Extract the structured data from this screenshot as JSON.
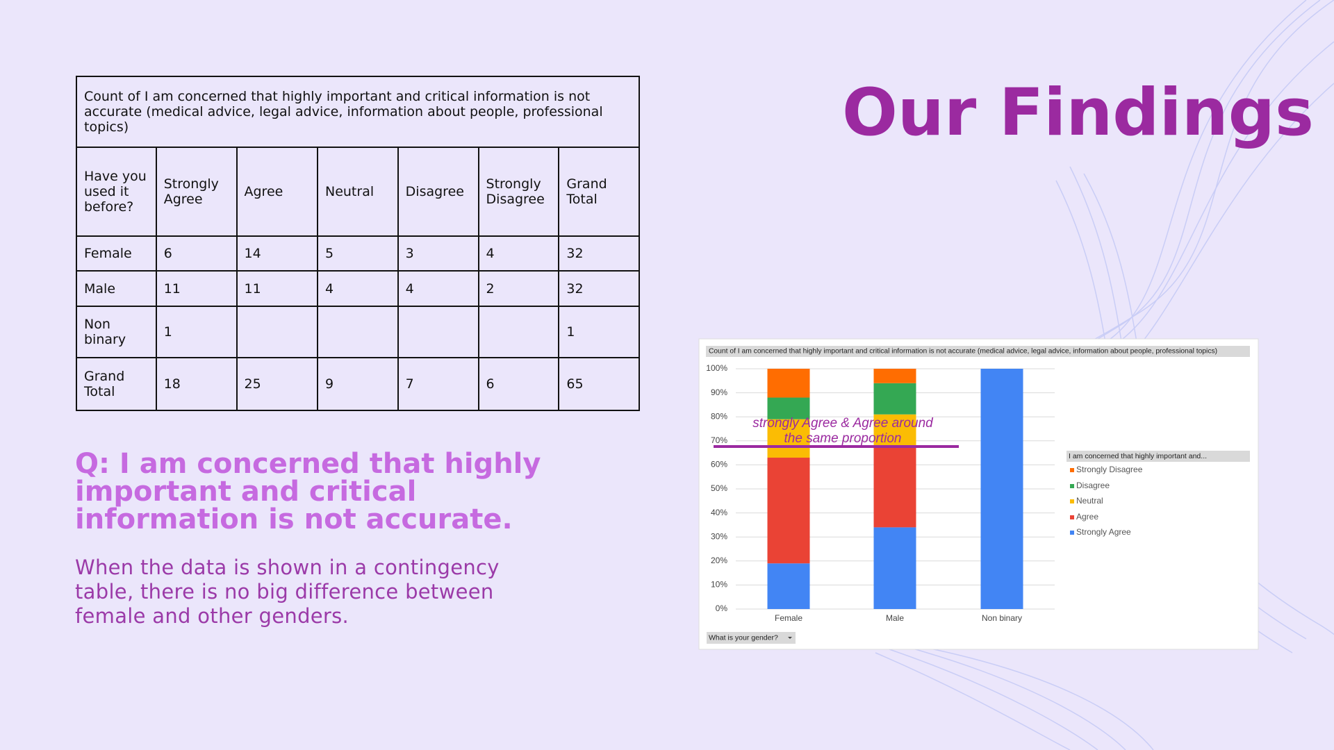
{
  "title": "Our Findings",
  "table": {
    "caption": "Count of I am concerned that highly important and critical information is not accurate (medical advice, legal advice, information about people, professional topics)",
    "header": [
      "Have you used it before?",
      "Strongly Agree",
      "Agree",
      "Neutral",
      "Disagree",
      "Strongly Disagree",
      "Grand Total"
    ],
    "rows": [
      [
        "Female",
        6,
        14,
        5,
        3,
        4,
        32
      ],
      [
        "Male",
        11,
        11,
        4,
        4,
        2,
        32
      ],
      [
        "Non binary",
        1,
        null,
        null,
        null,
        null,
        1
      ],
      [
        "Grand Total",
        18,
        25,
        9,
        7,
        6,
        65
      ]
    ]
  },
  "question": "Q: I am concerned that highly important and critical information is not accurate.",
  "body": "When the data is shown in a contingency table, there is no big difference between female and other genders.",
  "chart": {
    "type": "bar",
    "stacked": true,
    "title": "Count of I am concerned that highly important and critical information is not accurate (medical advice, legal advice, information about people, professional topics)",
    "categories": [
      "Female",
      "Male",
      "Non binary"
    ],
    "series": [
      {
        "name": "Strongly Agree",
        "color": "#4285f4",
        "values": [
          19,
          34,
          100
        ]
      },
      {
        "name": "Agree",
        "color": "#ea4335",
        "values": [
          44,
          34,
          0
        ]
      },
      {
        "name": "Neutral",
        "color": "#fbbc04",
        "values": [
          16,
          13,
          0
        ]
      },
      {
        "name": "Disagree",
        "color": "#34a853",
        "values": [
          9,
          13,
          0
        ]
      },
      {
        "name": "Strongly Disagree",
        "color": "#ff6d01",
        "values": [
          12,
          6,
          0
        ]
      }
    ],
    "ylim": [
      0,
      100
    ],
    "yticks": [
      {
        "value": 0,
        "label": "0%"
      },
      {
        "value": 10,
        "label": "10%"
      },
      {
        "value": 20,
        "label": "20%"
      },
      {
        "value": 30,
        "label": "30%"
      },
      {
        "value": 40,
        "label": "40%"
      },
      {
        "value": 50,
        "label": "50%"
      },
      {
        "value": 60,
        "label": "60%"
      },
      {
        "value": 70,
        "label": "70%"
      },
      {
        "value": 80,
        "label": "80%"
      },
      {
        "value": 90,
        "label": "90%"
      },
      {
        "value": 100,
        "label": "100%"
      }
    ],
    "grid": true,
    "legend_title": "I am concerned that highly important and...",
    "filter_label": "What is your gender?",
    "annotation": "strongly Agree & Agree around the same proportion"
  }
}
